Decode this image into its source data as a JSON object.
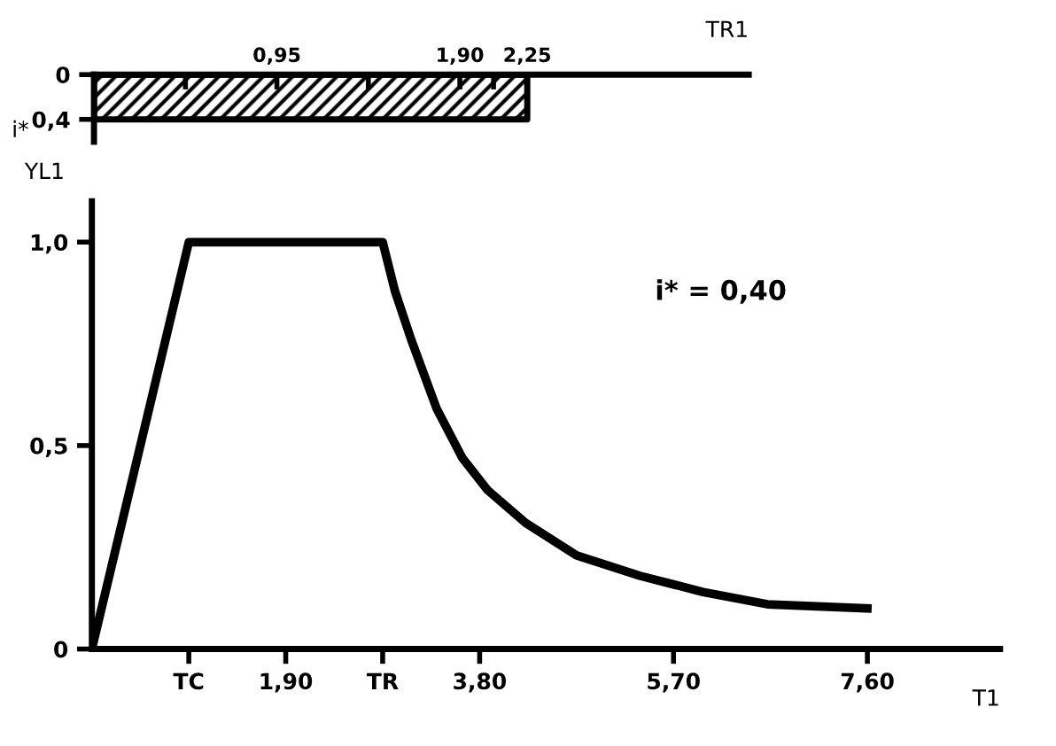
{
  "chart_data": [
    {
      "type": "area",
      "xlabel": "TR1",
      "ylabel": "i*",
      "x": [
        0,
        2.25
      ],
      "values": [
        0.4,
        0.4
      ],
      "color": "#000000",
      "xlim": [
        0,
        3.4
      ],
      "ylim": [
        0.6,
        0
      ],
      "xticks": [
        {
          "value": 0.475,
          "label": null
        },
        {
          "value": 0.95,
          "label": "0,95"
        },
        {
          "value": 1.425,
          "label": null
        },
        {
          "value": 1.9,
          "label": "1,90"
        },
        {
          "value": 2.075,
          "label": null
        },
        {
          "value": 2.25,
          "label": "2,25"
        }
      ],
      "yticks": [
        0,
        {
          "value": 0.4,
          "label": "0,4"
        }
      ],
      "grid": false,
      "legend": false
    },
    {
      "type": "line",
      "xlabel": "T1",
      "ylabel": "YL1",
      "annotations": [
        "i* = 0,40"
      ],
      "color": "#000000",
      "x": [
        0,
        0.95,
        2.85,
        2.97,
        3.13,
        3.38,
        3.63,
        3.88,
        4.25,
        4.75,
        5.37,
        5.99,
        6.62,
        7.6
      ],
      "values": [
        0,
        1.0,
        1.0,
        0.88,
        0.76,
        0.59,
        0.47,
        0.39,
        0.31,
        0.23,
        0.18,
        0.14,
        0.11,
        0.1
      ],
      "xlim": [
        0,
        8.9
      ],
      "ylim": [
        0,
        1.1
      ],
      "xticks": [
        {
          "value": 0.95,
          "label": "TC"
        },
        {
          "value": 1.9,
          "label": "1,90"
        },
        {
          "value": 2.85,
          "label": "TR"
        },
        {
          "value": 3.8,
          "label": "3,80"
        },
        {
          "value": 5.7,
          "label": "5,70"
        },
        {
          "value": 7.6,
          "label": "7,60"
        }
      ],
      "yticks": [
        0,
        {
          "value": 0.5,
          "label": "0,5"
        },
        {
          "value": 1.0,
          "label": "1,0"
        }
      ],
      "grid": false,
      "legend": false,
      "marker": "none",
      "line_style": "solid"
    }
  ]
}
